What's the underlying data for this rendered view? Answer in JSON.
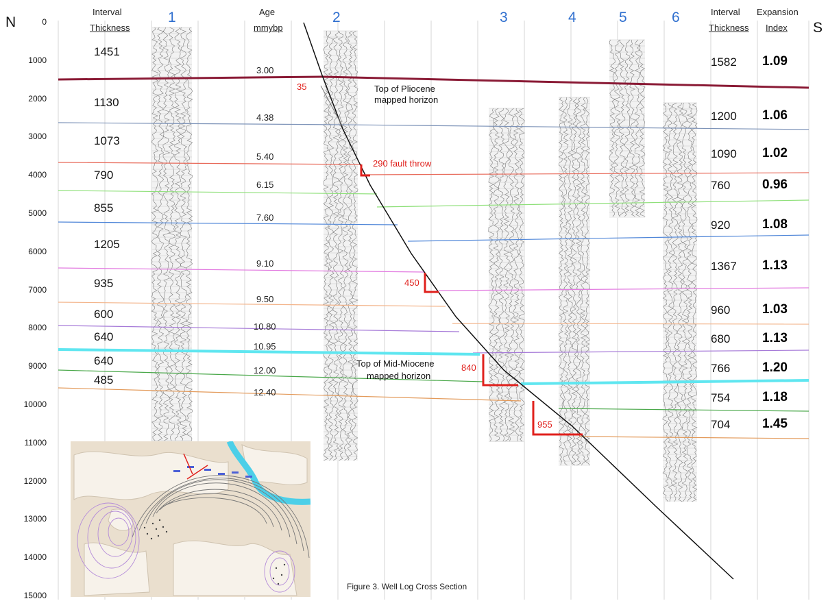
{
  "directions": {
    "north": "N",
    "south": "S"
  },
  "headers": {
    "left_interval": [
      "Interval",
      "Thickness"
    ],
    "age": [
      "Age",
      "mmybp"
    ],
    "right_interval": [
      "Interval",
      "Thickness"
    ],
    "expansion": [
      "Expansion",
      "Index"
    ]
  },
  "wells": [
    "1",
    "2",
    "3",
    "4",
    "5",
    "6"
  ],
  "depth_ticks": [
    "0",
    "1000",
    "2000",
    "3000",
    "4000",
    "5000",
    "6000",
    "7000",
    "8000",
    "9000",
    "10000",
    "11000",
    "12000",
    "13000",
    "14000",
    "15000"
  ],
  "left_thickness": [
    "1451",
    "1130",
    "1073",
    "790",
    "855",
    "1205",
    "935",
    "600",
    "640",
    "640",
    "485"
  ],
  "ages": [
    "3.00",
    "4.38",
    "5.40",
    "6.15",
    "7.60",
    "9.10",
    "9.50",
    "10.80",
    "10.95",
    "12.00",
    "12.40"
  ],
  "right_thickness": [
    "1582",
    "1200",
    "1090",
    "760",
    "920",
    "1367",
    "960",
    "680",
    "766",
    "754",
    "704"
  ],
  "expansion_index": [
    "1.09",
    "1.06",
    "1.02",
    "0.96",
    "1.08",
    "1.13",
    "1.03",
    "1.13",
    "1.20",
    "1.18",
    "1.45"
  ],
  "annotations": {
    "pliocene": [
      "Top of Pliocene",
      "mapped horizon"
    ],
    "miocene": [
      "Top of Mid-Miocene",
      "mapped horizon"
    ],
    "fault_throw": "290 fault throw",
    "throw_35": "35",
    "throw_450": "450",
    "throw_840": "840",
    "throw_955": "955"
  },
  "caption": "Figure 3.  Well Log Cross Section",
  "colors": {
    "pliocene_horizon": "#8a1a35",
    "miocene_horizon": "#5fe6f0",
    "fault": "#111111",
    "throw": "#e0201c",
    "well_label": "#2f6fcf"
  }
}
